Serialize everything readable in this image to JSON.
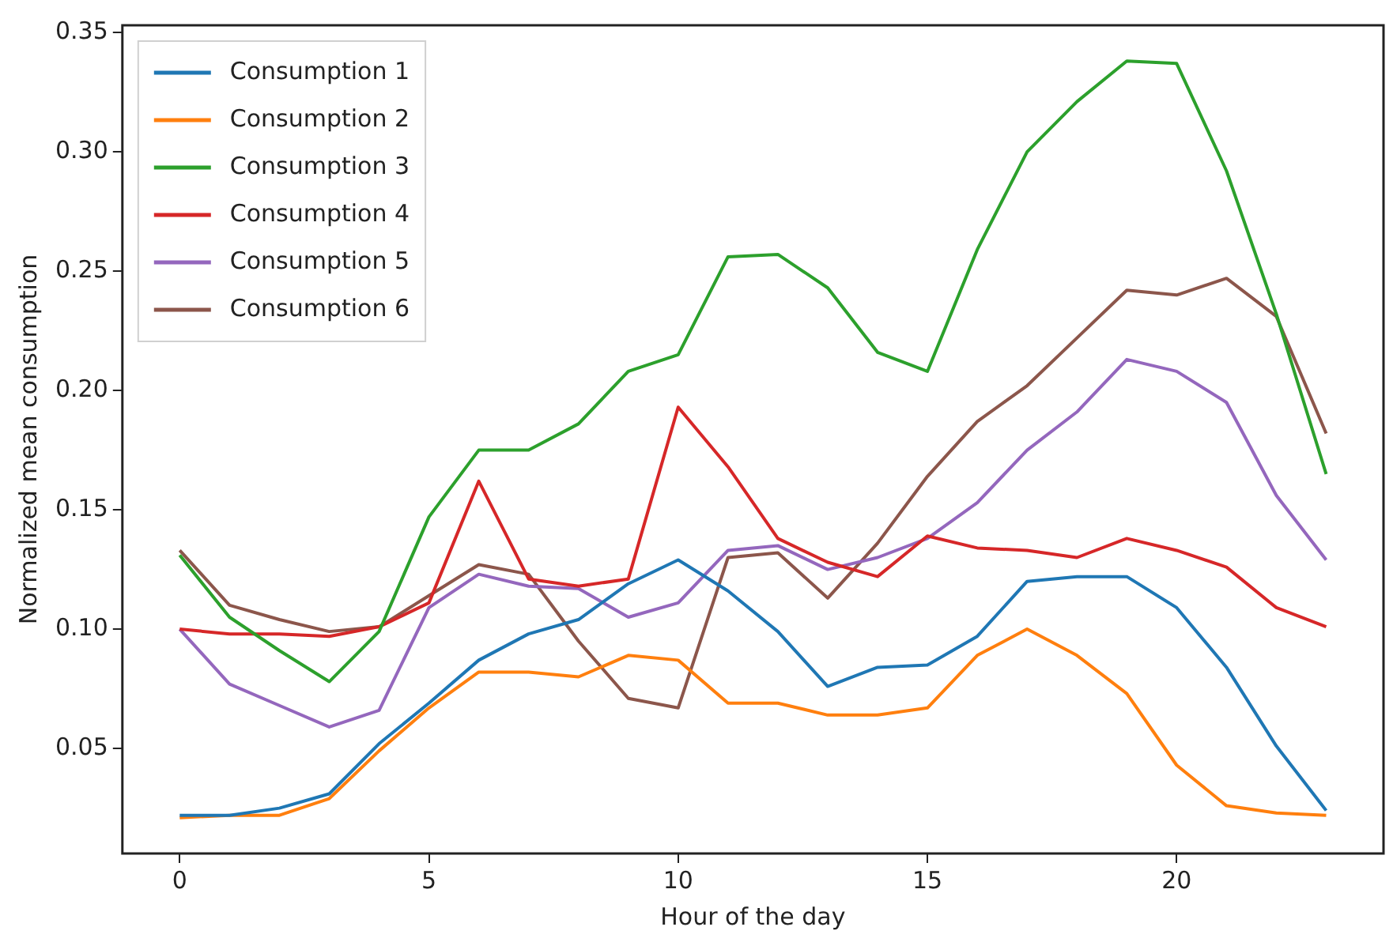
{
  "chart_data": {
    "type": "line",
    "xlabel": "Hour of the day",
    "ylabel": "Normalized mean consumption",
    "x": [
      0,
      1,
      2,
      3,
      4,
      5,
      6,
      7,
      8,
      9,
      10,
      11,
      12,
      13,
      14,
      15,
      16,
      17,
      18,
      19,
      20,
      21,
      22,
      23
    ],
    "xlim": [
      -1.15,
      24.15
    ],
    "xticks": [
      0,
      5,
      10,
      15,
      20
    ],
    "ylim": [
      0.006,
      0.353
    ],
    "yticks": [
      {
        "value": 0.05,
        "label": "0.05"
      },
      {
        "value": 0.1,
        "label": "0.10"
      },
      {
        "value": 0.15,
        "label": "0.15"
      },
      {
        "value": 0.2,
        "label": "0.20"
      },
      {
        "value": 0.25,
        "label": "0.25"
      },
      {
        "value": 0.3,
        "label": "0.30"
      },
      {
        "value": 0.35,
        "label": "0.35"
      }
    ],
    "grid": false,
    "legend": "top left",
    "marker": "none",
    "line_style": "solid",
    "series": [
      {
        "name": "Consumption 1",
        "color": "#1f77b4",
        "values": [
          0.022,
          0.022,
          0.025,
          0.031,
          0.052,
          0.069,
          0.087,
          0.098,
          0.104,
          0.119,
          0.129,
          0.116,
          0.099,
          0.076,
          0.084,
          0.085,
          0.097,
          0.12,
          0.122,
          0.122,
          0.109,
          0.084,
          0.051,
          0.024
        ]
      },
      {
        "name": "Consumption 2",
        "color": "#ff7f0e",
        "values": [
          0.021,
          0.022,
          0.022,
          0.029,
          0.049,
          0.067,
          0.082,
          0.082,
          0.08,
          0.089,
          0.087,
          0.069,
          0.069,
          0.064,
          0.064,
          0.067,
          0.089,
          0.1,
          0.089,
          0.073,
          0.043,
          0.026,
          0.023,
          0.022
        ]
      },
      {
        "name": "Consumption 3",
        "color": "#2ca02c",
        "values": [
          0.131,
          0.105,
          0.091,
          0.078,
          0.099,
          0.147,
          0.175,
          0.175,
          0.186,
          0.208,
          0.215,
          0.256,
          0.257,
          0.243,
          0.216,
          0.208,
          0.259,
          0.3,
          0.321,
          0.338,
          0.337,
          0.292,
          0.232,
          0.165
        ]
      },
      {
        "name": "Consumption 4",
        "color": "#d62728",
        "values": [
          0.1,
          0.098,
          0.098,
          0.097,
          0.101,
          0.111,
          0.162,
          0.121,
          0.118,
          0.121,
          0.193,
          0.168,
          0.138,
          0.128,
          0.122,
          0.139,
          0.134,
          0.133,
          0.13,
          0.138,
          0.133,
          0.126,
          0.109,
          0.101
        ]
      },
      {
        "name": "Consumption 5",
        "color": "#9467bd",
        "values": [
          0.1,
          0.077,
          0.068,
          0.059,
          0.066,
          0.109,
          0.123,
          0.118,
          0.117,
          0.105,
          0.111,
          0.133,
          0.135,
          0.125,
          0.13,
          0.138,
          0.153,
          0.175,
          0.191,
          0.213,
          0.208,
          0.195,
          0.156,
          0.129
        ]
      },
      {
        "name": "Consumption 6",
        "color": "#8c564b",
        "values": [
          0.133,
          0.11,
          0.104,
          0.099,
          0.101,
          0.114,
          0.127,
          0.123,
          0.095,
          0.071,
          0.067,
          0.13,
          0.132,
          0.113,
          0.136,
          0.164,
          0.187,
          0.202,
          0.222,
          0.242,
          0.24,
          0.247,
          0.231,
          0.182
        ]
      }
    ]
  }
}
